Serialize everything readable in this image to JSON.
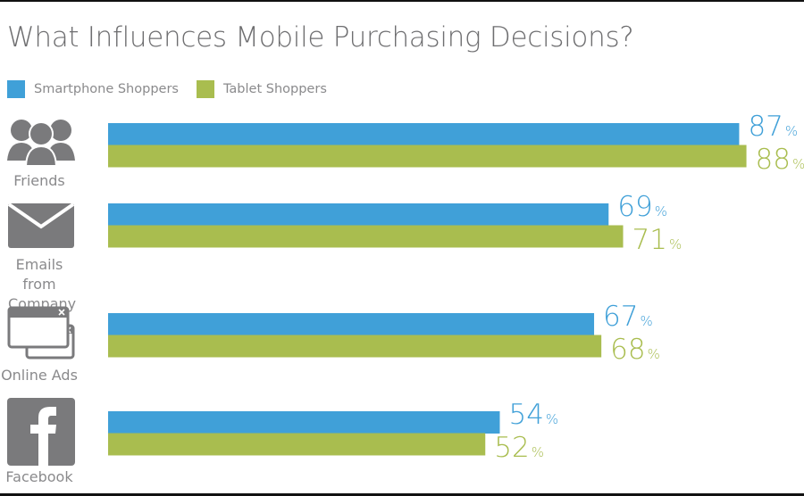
{
  "chart_data": {
    "type": "bar",
    "orientation": "horizontal",
    "title": "What Influences Mobile Purchasing Decisions?",
    "categories": [
      "Friends",
      "Emails from Company",
      "Online Ads",
      "Facebook"
    ],
    "category_icons": [
      "people-group-icon",
      "envelope-icon",
      "browser-windows-icon",
      "facebook-icon"
    ],
    "series": [
      {
        "name": "Smartphone Shoppers",
        "color": "#40a0d8",
        "values": [
          87,
          69,
          67,
          54
        ]
      },
      {
        "name": "Tablet Shoppers",
        "color": "#a9bd4f",
        "values": [
          88,
          71,
          68,
          52
        ]
      }
    ],
    "unit": "%",
    "xlim": [
      0,
      100
    ],
    "grid": false,
    "legend_position": "top-left"
  }
}
